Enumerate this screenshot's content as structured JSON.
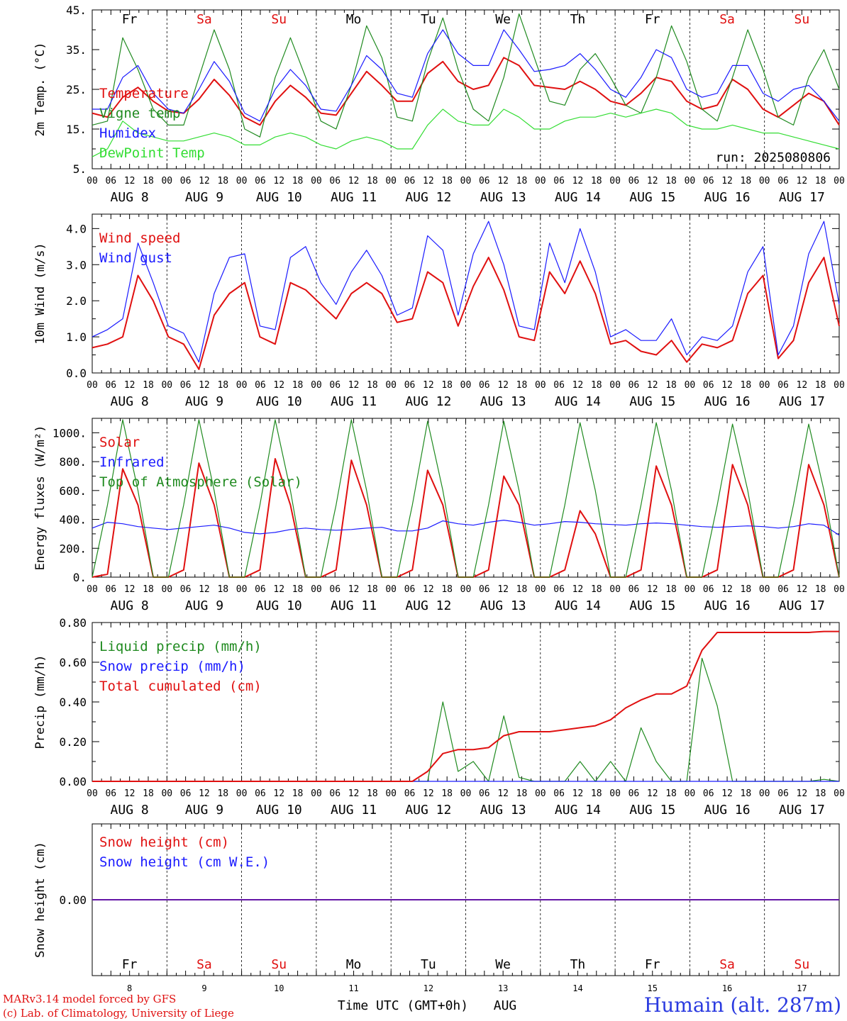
{
  "footer": {
    "model_line": "MARv3.14 model forced by GFS",
    "lab_line": "(c) Lab. of Climatology, University of Liege",
    "xlabel": "Time UTC (GMT+0h)",
    "month": "AUG",
    "station": "Humain (alt. 287m)"
  },
  "days": [
    "Fr",
    "Sa",
    "Su",
    "Mo",
    "Tu",
    "We",
    "Th",
    "Fr",
    "Sa",
    "Su"
  ],
  "day_numbers": [
    "8",
    "9",
    "10",
    "11",
    "12",
    "13",
    "14",
    "15",
    "16",
    "17"
  ],
  "date_labels": [
    "AUG  8",
    "AUG  9",
    "AUG 10",
    "AUG 11",
    "AUG 12",
    "AUG 13",
    "AUG 14",
    "AUG 15",
    "AUG 16",
    "AUG 17"
  ],
  "hour_ticks": [
    "00",
    "06",
    "12",
    "18"
  ],
  "run_label": "run: 2025080806",
  "colors": {
    "red": "#e01010",
    "blue": "#1a1aff",
    "green": "#1f8a1f",
    "light_green": "#33dd33",
    "weekend": "#e01010",
    "weekday": "#000000"
  },
  "chart_data": [
    {
      "type": "line",
      "ylabel": "2m Temp. (°C)",
      "yticks": [
        "5.",
        "15.",
        "25.",
        "35.",
        "45."
      ],
      "ylim": [
        5,
        45
      ],
      "series": [
        {
          "name": "Temperature",
          "color": "red",
          "values": [
            19,
            18,
            23,
            25.5,
            22,
            19.5,
            19,
            22.5,
            27.5,
            23.5,
            18,
            16,
            22,
            26,
            23,
            19,
            18.5,
            24,
            29.5,
            26,
            22,
            22,
            29,
            32,
            27,
            25,
            26,
            33,
            31,
            26,
            25.5,
            25,
            27,
            25,
            22,
            21,
            24,
            28,
            27,
            22,
            20,
            21,
            27.5,
            25,
            20,
            18,
            21,
            24,
            22,
            16
          ]
        },
        {
          "name": "Vigne temp",
          "color": "green",
          "values": [
            16,
            17,
            38,
            30,
            20,
            16,
            16,
            28,
            40,
            30,
            15,
            13,
            28,
            38,
            28,
            17,
            15,
            26,
            41,
            33,
            18,
            17,
            32,
            43,
            30,
            20,
            17,
            28,
            44,
            33,
            22,
            21,
            30,
            34,
            28,
            21,
            19,
            28,
            41,
            32,
            20,
            17,
            28,
            40,
            30,
            18,
            16,
            28,
            35,
            25
          ]
        },
        {
          "name": "Humidex",
          "color": "blue",
          "values": [
            20,
            20,
            28,
            31,
            24,
            20,
            19,
            25,
            32,
            27,
            19,
            17,
            25,
            30,
            26,
            20,
            19.5,
            26,
            33.5,
            30,
            24,
            23,
            34,
            40,
            34,
            31,
            31,
            40,
            35,
            29.5,
            30,
            31,
            34,
            30,
            25,
            23,
            28,
            35,
            33,
            25,
            23,
            24,
            31,
            31,
            24,
            22,
            25,
            26,
            22,
            17
          ]
        },
        {
          "name": "DewPoint Temp",
          "color": "light_green",
          "values": [
            8,
            10,
            17,
            14,
            13,
            12,
            12,
            13,
            14,
            13,
            11,
            11,
            13,
            14,
            13,
            11,
            10,
            12,
            13,
            12,
            10,
            10,
            16,
            20,
            17,
            16,
            16,
            20,
            18,
            15,
            15,
            17,
            18,
            18,
            19,
            18,
            19,
            20,
            19,
            16,
            15,
            15,
            16,
            15,
            14,
            14,
            13,
            12,
            11,
            10
          ]
        }
      ]
    },
    {
      "type": "line",
      "ylabel": "10m Wind (m/s)",
      "yticks": [
        "0.0",
        "1.0",
        "2.0",
        "3.0",
        "4.0"
      ],
      "ylim": [
        0,
        4.4
      ],
      "series": [
        {
          "name": "Wind speed",
          "color": "red",
          "values": [
            0.7,
            0.8,
            1.0,
            2.7,
            2.0,
            1.0,
            0.8,
            0.1,
            1.6,
            2.2,
            2.5,
            1.0,
            0.8,
            2.5,
            2.3,
            1.9,
            1.5,
            2.2,
            2.5,
            2.2,
            1.4,
            1.5,
            2.8,
            2.5,
            1.3,
            2.4,
            3.2,
            2.3,
            1.0,
            0.9,
            2.8,
            2.2,
            3.1,
            2.2,
            0.8,
            0.9,
            0.6,
            0.5,
            0.9,
            0.3,
            0.8,
            0.7,
            0.9,
            2.2,
            2.7,
            0.4,
            0.9,
            2.5,
            3.2,
            1.3
          ]
        },
        {
          "name": "Wind gust",
          "color": "blue",
          "values": [
            1.0,
            1.2,
            1.5,
            3.6,
            2.5,
            1.3,
            1.1,
            0.3,
            2.2,
            3.2,
            3.3,
            1.3,
            1.2,
            3.2,
            3.5,
            2.5,
            1.9,
            2.8,
            3.4,
            2.7,
            1.6,
            1.8,
            3.8,
            3.4,
            1.6,
            3.3,
            4.2,
            3.0,
            1.3,
            1.2,
            3.6,
            2.5,
            4.0,
            2.8,
            1.0,
            1.2,
            0.9,
            0.9,
            1.5,
            0.5,
            1.0,
            0.9,
            1.3,
            2.8,
            3.5,
            0.5,
            1.3,
            3.3,
            4.2,
            1.9
          ]
        }
      ]
    },
    {
      "type": "line",
      "ylabel": "Energy fluxes (W/m²)",
      "yticks": [
        "0.",
        "200.",
        "400.",
        "600.",
        "800.",
        "1000."
      ],
      "ylim": [
        0,
        1100
      ],
      "series": [
        {
          "name": "Solar",
          "color": "red",
          "values": [
            0,
            20,
            750,
            500,
            0,
            0,
            50,
            790,
            500,
            0,
            0,
            50,
            820,
            500,
            0,
            0,
            50,
            810,
            500,
            0,
            0,
            50,
            740,
            500,
            0,
            0,
            50,
            700,
            500,
            0,
            0,
            50,
            460,
            300,
            0,
            0,
            50,
            770,
            500,
            0,
            0,
            50,
            780,
            500,
            0,
            0,
            50,
            780,
            500,
            0
          ]
        },
        {
          "name": "Infrared",
          "color": "blue",
          "values": [
            340,
            380,
            370,
            350,
            340,
            330,
            340,
            350,
            360,
            340,
            310,
            300,
            310,
            330,
            340,
            330,
            325,
            330,
            340,
            345,
            320,
            320,
            340,
            390,
            370,
            360,
            380,
            395,
            380,
            360,
            370,
            385,
            380,
            370,
            365,
            360,
            370,
            375,
            370,
            360,
            350,
            345,
            350,
            355,
            350,
            340,
            350,
            370,
            360,
            290
          ]
        },
        {
          "name": "Top of Atmosphere (Solar)",
          "color": "green",
          "values": [
            0,
            500,
            1090,
            600,
            0,
            0,
            500,
            1090,
            600,
            0,
            0,
            500,
            1090,
            600,
            0,
            0,
            500,
            1090,
            600,
            0,
            0,
            500,
            1080,
            600,
            0,
            0,
            500,
            1080,
            600,
            0,
            0,
            500,
            1070,
            600,
            0,
            0,
            500,
            1070,
            600,
            0,
            0,
            500,
            1060,
            600,
            0,
            0,
            500,
            1060,
            600,
            0
          ]
        }
      ]
    },
    {
      "type": "line",
      "ylabel": "Precip (mm/h)",
      "yticks": [
        "0.00",
        "0.20",
        "0.40",
        "0.60",
        "0.80"
      ],
      "ylim": [
        0,
        0.8
      ],
      "series": [
        {
          "name": "Liquid precip (mm/h)",
          "color": "green",
          "values": [
            0,
            0,
            0,
            0,
            0,
            0,
            0,
            0,
            0,
            0,
            0,
            0,
            0,
            0,
            0,
            0,
            0,
            0,
            0,
            0,
            0,
            0,
            0,
            0.4,
            0.05,
            0.1,
            0,
            0.33,
            0.02,
            0,
            0,
            0,
            0.1,
            0,
            0.1,
            0,
            0.27,
            0.1,
            0,
            0,
            0.62,
            0.38,
            0,
            0,
            0,
            0,
            0,
            0,
            0.01,
            0
          ]
        },
        {
          "name": "Snow precip (mm/h)",
          "color": "blue",
          "values": [
            0,
            0,
            0,
            0,
            0,
            0,
            0,
            0,
            0,
            0,
            0,
            0,
            0,
            0,
            0,
            0,
            0,
            0,
            0,
            0,
            0,
            0,
            0,
            0,
            0,
            0,
            0,
            0,
            0,
            0,
            0,
            0,
            0,
            0,
            0,
            0,
            0,
            0,
            0,
            0,
            0,
            0,
            0,
            0,
            0,
            0,
            0,
            0,
            0,
            0
          ]
        },
        {
          "name": "Total cumulated (cm)",
          "color": "red",
          "values": [
            0,
            0,
            0,
            0,
            0,
            0,
            0,
            0,
            0,
            0,
            0,
            0,
            0,
            0,
            0,
            0,
            0,
            0,
            0,
            0,
            0,
            0,
            0.05,
            0.14,
            0.16,
            0.16,
            0.17,
            0.23,
            0.25,
            0.25,
            0.25,
            0.26,
            0.27,
            0.28,
            0.31,
            0.37,
            0.41,
            0.44,
            0.44,
            0.48,
            0.66,
            0.75,
            0.75,
            0.75,
            0.75,
            0.75,
            0.75,
            0.75,
            0.755,
            0.755
          ]
        }
      ]
    },
    {
      "type": "line",
      "ylabel": "Snow height (cm)",
      "yticks": [
        "0.00"
      ],
      "ylim": [
        -1,
        1
      ],
      "series": [
        {
          "name": "Snow height (cm)",
          "color": "red",
          "values": [
            0,
            0,
            0,
            0,
            0,
            0,
            0,
            0,
            0,
            0,
            0,
            0,
            0,
            0,
            0,
            0,
            0,
            0,
            0,
            0,
            0,
            0,
            0,
            0,
            0,
            0,
            0,
            0,
            0,
            0,
            0,
            0,
            0,
            0,
            0,
            0,
            0,
            0,
            0,
            0,
            0,
            0,
            0,
            0,
            0,
            0,
            0,
            0,
            0,
            0
          ]
        },
        {
          "name": "Snow height (cm W.E.)",
          "color": "blue",
          "values": [
            0,
            0,
            0,
            0,
            0,
            0,
            0,
            0,
            0,
            0,
            0,
            0,
            0,
            0,
            0,
            0,
            0,
            0,
            0,
            0,
            0,
            0,
            0,
            0,
            0,
            0,
            0,
            0,
            0,
            0,
            0,
            0,
            0,
            0,
            0,
            0,
            0,
            0,
            0,
            0,
            0,
            0,
            0,
            0,
            0,
            0,
            0,
            0,
            0,
            0
          ]
        }
      ]
    }
  ]
}
